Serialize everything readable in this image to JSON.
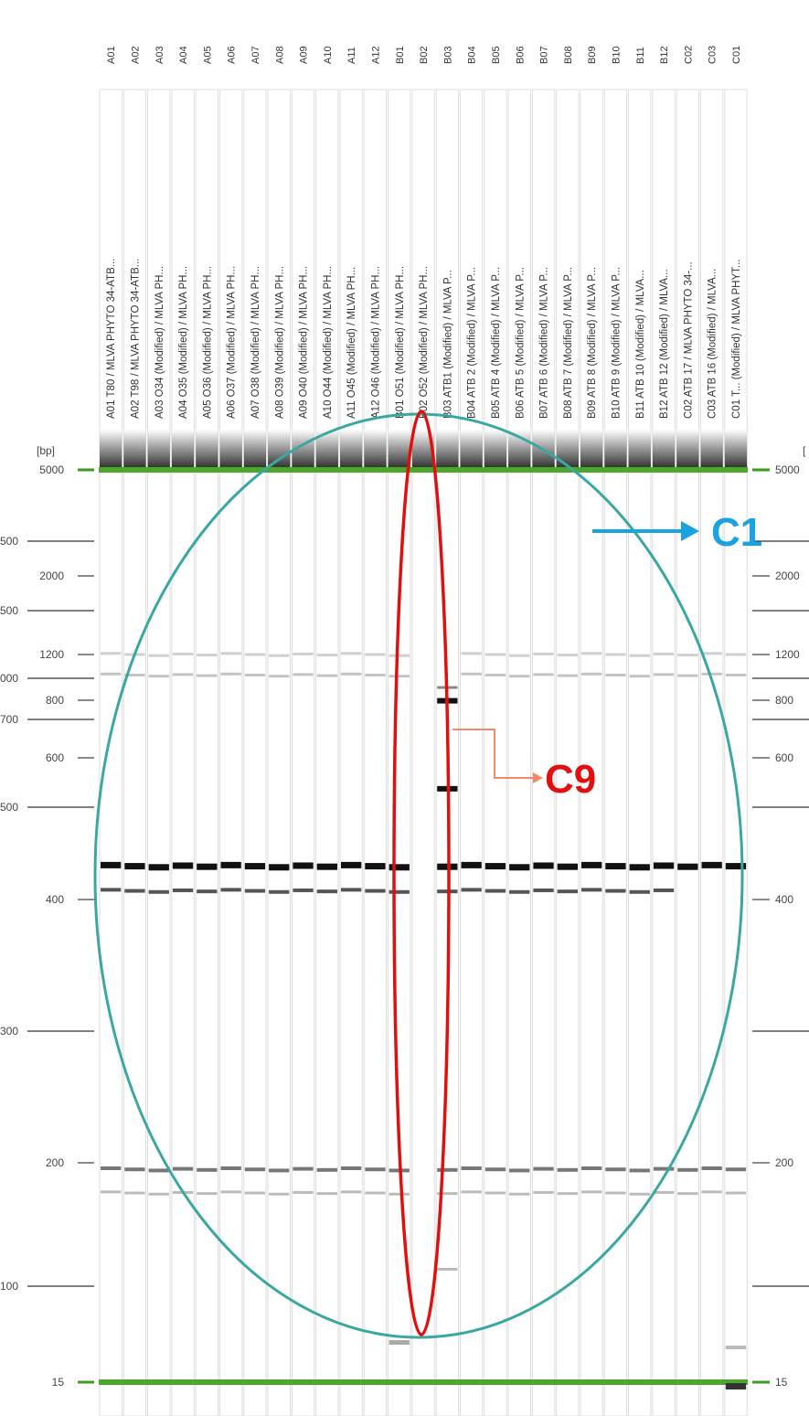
{
  "gel": {
    "well_ids": [
      "A01",
      "A02",
      "A03",
      "A04",
      "A05",
      "A06",
      "A07",
      "A08",
      "A09",
      "A10",
      "A11",
      "A12",
      "B01",
      "B02",
      "B03",
      "B04",
      "B05",
      "B06",
      "B07",
      "B08",
      "B09",
      "B10",
      "B11",
      "B12",
      "C02",
      "C03",
      "C01"
    ],
    "sample_names": [
      "A01 T80 / MLVA PHYTO 34-ATB...",
      "A02 T98 / MLVA PHYTO 34-ATB...",
      "A03 O34 (Modified) / MLVA PH...",
      "A04 O35 (Modified) / MLVA PH...",
      "A05 O36 (Modified) / MLVA PH...",
      "A06 O37 (Modified) / MLVA PH...",
      "A07 O38 (Modified) / MLVA PH...",
      "A08 O39 (Modified) / MLVA PH...",
      "A09 O40 (Modified) / MLVA PH...",
      "A10 O44 (Modified) / MLVA PH...",
      "A11 O45 (Modified) / MLVA PH...",
      "A12 O46 (Modified) / MLVA PH...",
      "B01 O51 (Modified) / MLVA PH...",
      "B02 O52 (Modified) / MLVA PH...",
      "B03 ATB1 (Modified) / MLVA P...",
      "B04 ATB 2 (Modified) / MLVA P...",
      "B05 ATB 4 (Modified) / MLVA P...",
      "B06 ATB 5 (Modified) / MLVA P...",
      "B07 ATB 6 (Modified) / MLVA P...",
      "B08 ATB 7 (Modified) / MLVA P...",
      "B09 ATB 8 (Modified) / MLVA P...",
      "B10 ATB 9 (Modified) / MLVA P...",
      "B11 ATB 10 (Modified) / MLVA...",
      "B12 ATB 12 (Modified) / MLVA...",
      "C02 ATB 17 / MLVA PHYTO 34-...",
      "C03 ATB 16 (Modified) / MLVA...",
      "C01 T... (Modified) / MLVA PHYT..."
    ],
    "unit_label": "[bp]",
    "left_scale": [
      "5000",
      "2000",
      "1200",
      "800",
      "600",
      "400",
      "200",
      "15"
    ],
    "left_scale_green": [
      "5000",
      "15"
    ],
    "left_partial_marks": [
      "500",
      "500",
      "000",
      "700",
      "500",
      "300",
      "100"
    ],
    "right_scale": [
      "5000",
      "2000",
      "1200",
      "800",
      "600",
      "400",
      "200",
      "15"
    ],
    "right_partial_mark": "[",
    "common_bands_bp": [
      1200,
      1000,
      440,
      410,
      185,
      140
    ],
    "lane_B03_bands_bp": [
      900,
      800,
      550,
      440,
      410,
      185,
      140
    ]
  },
  "annotations": {
    "c1_label": "C1",
    "c9_label": "C9",
    "colors": {
      "ellipse": "#3aa8a0",
      "arrow": "#1aa3e0",
      "red_oval": "#e01010",
      "c9_text": "#e01010",
      "c9_connector": "#f08a6a"
    }
  }
}
